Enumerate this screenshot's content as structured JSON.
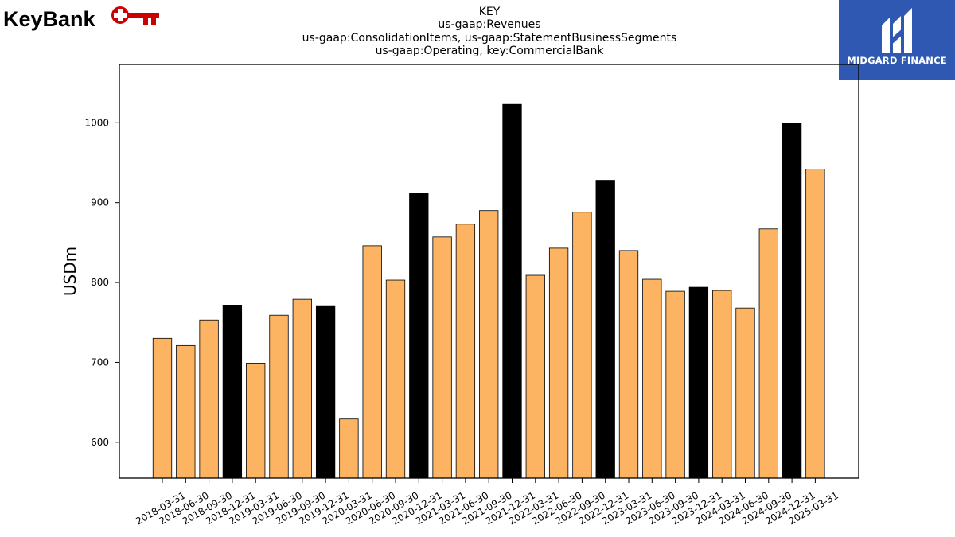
{
  "branding": {
    "left_logo_text": "KeyBank",
    "right_logo_text": "MIDGARD FINANCE",
    "left_logo_color": "#cc0000",
    "right_badge_color": "#2e58b1"
  },
  "title_lines": [
    "KEY",
    "us-gaap:Revenues",
    "us-gaap:ConsolidationItems, us-gaap:StatementBusinessSegments",
    "us-gaap:Operating, key:CommercialBank"
  ],
  "chart_data": {
    "type": "bar",
    "ylabel": "USDm",
    "xlabel": "",
    "ylim": [
      555,
      1073
    ],
    "yticks": [
      600,
      700,
      800,
      900,
      1000
    ],
    "grid": false,
    "colors": {
      "quarter": "#fdb462",
      "year_end": "#000000",
      "edge": "#000000"
    },
    "categories": [
      "2018-03-31",
      "2018-06-30",
      "2018-09-30",
      "2018-12-31",
      "2019-03-31",
      "2019-06-30",
      "2019-09-30",
      "2019-12-31",
      "2020-03-31",
      "2020-06-30",
      "2020-09-30",
      "2020-12-31",
      "2021-03-31",
      "2021-06-30",
      "2021-09-30",
      "2021-12-31",
      "2022-03-31",
      "2022-06-30",
      "2022-09-30",
      "2022-12-31",
      "2023-03-31",
      "2023-06-30",
      "2023-09-30",
      "2023-12-31",
      "2024-03-31",
      "2024-06-30",
      "2024-09-30",
      "2024-12-31",
      "2025-03-31"
    ],
    "values": [
      730,
      721,
      753,
      771,
      699,
      759,
      779,
      770,
      629,
      846,
      803,
      912,
      857,
      873,
      890,
      1023,
      809,
      843,
      888,
      928,
      840,
      804,
      789,
      794,
      790,
      768,
      867,
      999,
      942
    ],
    "year_end": [
      false,
      false,
      false,
      true,
      false,
      false,
      false,
      true,
      false,
      false,
      false,
      true,
      false,
      false,
      false,
      true,
      false,
      false,
      false,
      true,
      false,
      false,
      false,
      true,
      false,
      false,
      false,
      true,
      false
    ]
  }
}
